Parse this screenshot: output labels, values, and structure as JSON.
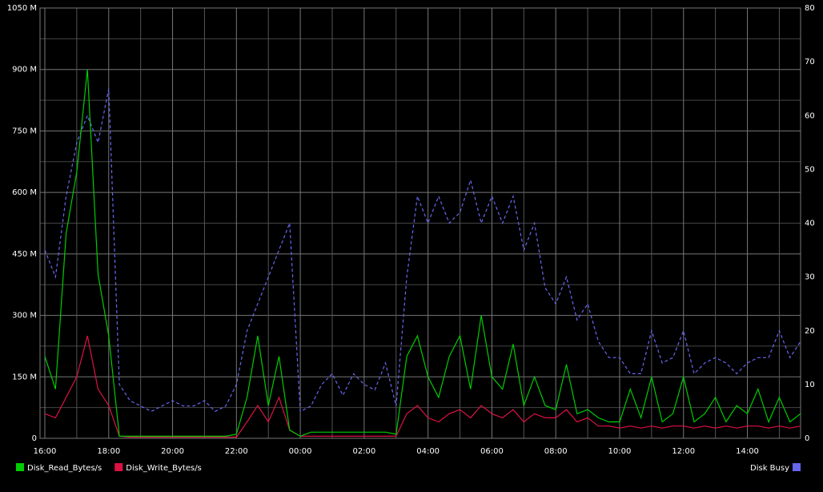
{
  "chart_data": {
    "type": "line",
    "categories": [
      "16:00",
      null,
      null,
      null,
      null,
      null,
      "18:00",
      null,
      null,
      null,
      null,
      null,
      "20:00",
      null,
      null,
      null,
      null,
      null,
      "22:00",
      null,
      null,
      null,
      null,
      null,
      "00:00",
      null,
      null,
      null,
      null,
      null,
      "02:00",
      null,
      null,
      null,
      null,
      null,
      "04:00",
      null,
      null,
      null,
      null,
      null,
      "06:00",
      null,
      null,
      null,
      null,
      null,
      "08:00",
      null,
      null,
      null,
      null,
      null,
      "10:00",
      null,
      null,
      null,
      null,
      null,
      "12:00",
      null,
      null,
      null,
      null,
      null,
      "14:00",
      null,
      null,
      null,
      null,
      null
    ],
    "series": [
      {
        "name": "Disk_Read_Bytes/s",
        "color": "#00cc00",
        "axis": "y",
        "values": [
          200,
          120,
          500,
          650,
          900,
          400,
          250,
          5,
          5,
          5,
          5,
          5,
          5,
          5,
          5,
          5,
          5,
          5,
          10,
          100,
          250,
          80,
          200,
          20,
          5,
          15,
          15,
          15,
          15,
          15,
          15,
          15,
          15,
          10,
          200,
          250,
          150,
          100,
          200,
          250,
          120,
          300,
          150,
          120,
          230,
          80,
          150,
          80,
          70,
          180,
          60,
          70,
          50,
          40,
          40,
          120,
          50,
          150,
          40,
          60,
          150,
          40,
          60,
          100,
          40,
          80,
          60,
          120,
          40,
          100,
          40,
          60
        ]
      },
      {
        "name": "Disk_Write_Bytes/s",
        "color": "#dd1144",
        "axis": "y",
        "values": [
          60,
          50,
          100,
          150,
          250,
          120,
          80,
          5,
          3,
          3,
          3,
          3,
          3,
          3,
          3,
          3,
          3,
          3,
          3,
          40,
          80,
          40,
          100,
          20,
          5,
          5,
          5,
          5,
          5,
          5,
          5,
          5,
          5,
          5,
          60,
          80,
          50,
          40,
          60,
          70,
          50,
          80,
          60,
          50,
          70,
          40,
          60,
          50,
          50,
          70,
          40,
          50,
          30,
          30,
          25,
          30,
          25,
          30,
          25,
          30,
          30,
          25,
          30,
          25,
          30,
          25,
          30,
          30,
          25,
          30,
          25,
          30
        ]
      },
      {
        "name": "Disk Busy",
        "color": "#6666ee",
        "axis": "y2",
        "values": [
          35,
          30,
          45,
          55,
          60,
          55,
          65,
          10,
          7,
          6,
          5,
          6,
          7,
          6,
          6,
          7,
          5,
          6,
          10,
          20,
          25,
          30,
          35,
          40,
          5,
          6,
          10,
          12,
          8,
          12,
          10,
          9,
          14,
          6,
          30,
          45,
          40,
          45,
          40,
          42,
          48,
          40,
          45,
          40,
          45,
          35,
          40,
          28,
          25,
          30,
          22,
          25,
          18,
          15,
          15,
          12,
          12,
          20,
          14,
          15,
          20,
          12,
          14,
          15,
          14,
          12,
          14,
          15,
          15,
          20,
          15,
          18
        ]
      }
    ],
    "ylim": [
      0,
      1050
    ],
    "yticks": [
      0,
      {
        "value": 150,
        "label": "150 M"
      },
      {
        "value": 300,
        "label": "300 M"
      },
      {
        "value": 450,
        "label": "450 M"
      },
      {
        "value": 600,
        "label": "600 M"
      },
      {
        "value": 750,
        "label": "750 M"
      },
      {
        "value": 900,
        "label": "900 M"
      },
      {
        "value": 1050,
        "label": "1050 M"
      }
    ],
    "y2lim": [
      0,
      80
    ],
    "y2ticks": [
      0,
      10,
      20,
      30,
      40,
      50,
      60,
      70,
      80
    ],
    "grid": true
  }
}
